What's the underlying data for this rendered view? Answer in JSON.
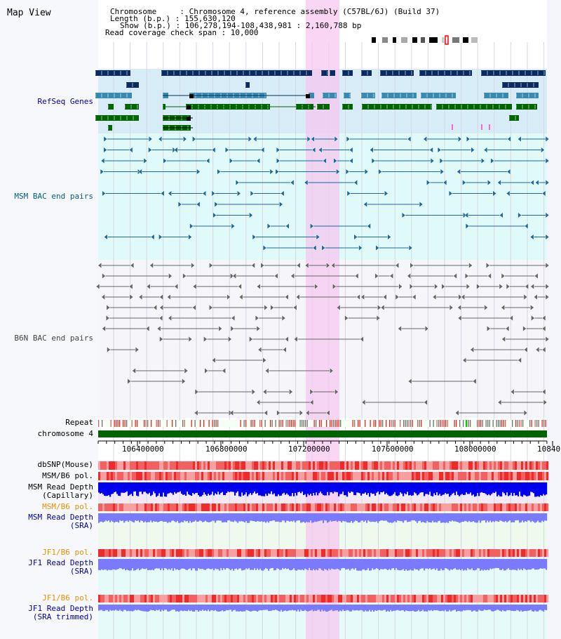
{
  "title": "Map View",
  "header": {
    "line1": "Chromosome     : Chromosome 4, reference assembly (C57BL/6J) (Build 37)",
    "line2": "Length (b.p.) : 155,630,120",
    "line3": "Show (b.p.) : 106,278,194-108,438,981 : 2,160,788 bp",
    "line4": "Read coverage check span : 10,000"
  },
  "tracks": {
    "refseq": "RefSeq Genes",
    "msm_bac": "MSM BAC end pairs",
    "b6n_bac": "B6N BAC end pairs",
    "repeat": "Repeat",
    "chromosome": "chromosome 4",
    "dbsnp": "dbSNP(Mouse)",
    "msm_b6_pol": "MSM/B6 pol.",
    "msm_depth_cap_1": "MSM Read Depth",
    "msm_depth_cap_2": "(Capillary)",
    "msm_b6_pol_2": "MSM/B6 pol.",
    "msm_depth_sra_1": "MSM Read Depth",
    "msm_depth_sra_2": "(SRA)",
    "jf1_b6_pol": "JF1/B6 pol.",
    "jf1_depth_sra_1": "JF1 Read Depth",
    "jf1_depth_sra_2": "(SRA)",
    "jf1_b6_pol_2": "JF1/B6 pol.",
    "jf1_depth_trim_1": "JF1 Read Depth",
    "jf1_depth_trim_2": "(SRA trimmed)"
  },
  "axis": {
    "ticks": [
      "106400000",
      "106800000",
      "107200000",
      "107600000",
      "108000000",
      "10840"
    ]
  },
  "colors": {
    "refseq_bg": "#d8ecf8",
    "msm_bg": "#e0fafa",
    "b6n_bg": "#f5f5fa",
    "highlight": "#f5c8f0",
    "refseq_dark": "#0a2a60",
    "refseq_mid": "#3a8ab0",
    "refseq_green": "#006400",
    "msm_line": "#1a6a9a",
    "b6n_line": "#666666",
    "chromosome": "#006400",
    "depth_blue": "#0000ee",
    "depth_light": "#7a7aff",
    "pol_red": "#ee3030",
    "label_blue": "#000099",
    "label_teal": "#006080",
    "label_orange": "#e89000"
  }
}
